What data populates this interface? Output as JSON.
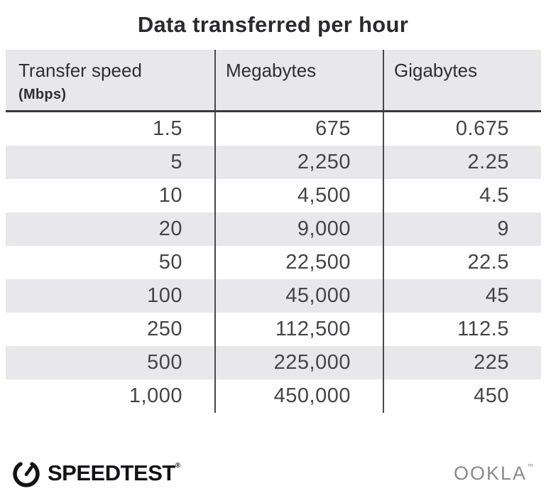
{
  "title": "Data transferred per hour",
  "table": {
    "columns": [
      {
        "label": "Transfer speed",
        "sublabel": "(Mbps)"
      },
      {
        "label": "Megabytes"
      },
      {
        "label": "Gigabytes"
      }
    ],
    "rows": [
      [
        "1.5",
        "675",
        "0.675"
      ],
      [
        "5",
        "2,250",
        "2.25"
      ],
      [
        "10",
        "4,500",
        "4.5"
      ],
      [
        "20",
        "9,000",
        "9"
      ],
      [
        "50",
        "22,500",
        "22.5"
      ],
      [
        "100",
        "45,000",
        "45"
      ],
      [
        "250",
        "112,500",
        "112.5"
      ],
      [
        "500",
        "225,000",
        "225"
      ],
      [
        "1,000",
        "450,000",
        "450"
      ]
    ]
  },
  "footer": {
    "speedtest_label": "SPEEDTEST",
    "speedtest_mark": "®",
    "ookla_label": "OOKLA",
    "ookla_mark": "™"
  },
  "colors": {
    "stripe": "#e8e7eb",
    "divider": "#4a4a4e",
    "header_rule": "#39383c",
    "text_dark": "#2b2a2e",
    "text_body": "#454449",
    "ookla_gray": "#8b8b8e",
    "speedtest_black": "#131316"
  },
  "chart_data": {
    "type": "table",
    "title": "Data transferred per hour",
    "columns": [
      "Transfer speed (Mbps)",
      "Megabytes",
      "Gigabytes"
    ],
    "rows": [
      [
        1.5,
        675,
        0.675
      ],
      [
        5,
        2250,
        2.25
      ],
      [
        10,
        4500,
        4.5
      ],
      [
        20,
        9000,
        9
      ],
      [
        50,
        22500,
        22.5
      ],
      [
        100,
        45000,
        45
      ],
      [
        250,
        112500,
        112.5
      ],
      [
        500,
        225000,
        225
      ],
      [
        1000,
        450000,
        450
      ]
    ]
  }
}
